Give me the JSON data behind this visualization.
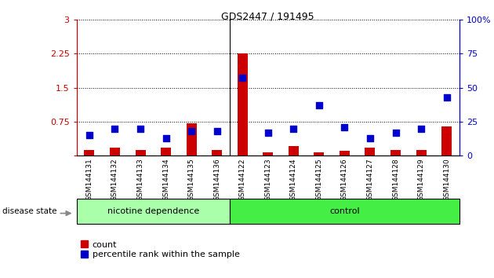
{
  "title": "GDS2447 / 191495",
  "samples": [
    "GSM144131",
    "GSM144132",
    "GSM144133",
    "GSM144134",
    "GSM144135",
    "GSM144136",
    "GSM144122",
    "GSM144123",
    "GSM144124",
    "GSM144125",
    "GSM144126",
    "GSM144127",
    "GSM144128",
    "GSM144129",
    "GSM144130"
  ],
  "count_values": [
    0.12,
    0.18,
    0.13,
    0.17,
    0.72,
    0.12,
    2.25,
    0.07,
    0.22,
    0.08,
    0.1,
    0.17,
    0.13,
    0.13,
    0.65
  ],
  "percentile_values": [
    15,
    20,
    20,
    13,
    18,
    18,
    57,
    17,
    20,
    37,
    21,
    13,
    17,
    20,
    43
  ],
  "groups": [
    {
      "label": "nicotine dependence",
      "start": 0,
      "end": 6,
      "color": "#aaffaa"
    },
    {
      "label": "control",
      "start": 6,
      "end": 15,
      "color": "#44ee44"
    }
  ],
  "group_separator": 6,
  "ylim_left": [
    0,
    3
  ],
  "ylim_right": [
    0,
    100
  ],
  "yticks_left": [
    0,
    0.75,
    1.5,
    2.25,
    3
  ],
  "yticks_right": [
    0,
    25,
    50,
    75,
    100
  ],
  "bar_color": "#cc0000",
  "dot_color": "#0000cc",
  "background_color": "#ffffff",
  "bar_width": 0.4,
  "dot_size": 28,
  "legend_count_label": "count",
  "legend_percentile_label": "percentile rank within the sample",
  "disease_state_label": "disease state",
  "axis_left_color": "#cc0000",
  "axis_right_color": "#0000cc"
}
